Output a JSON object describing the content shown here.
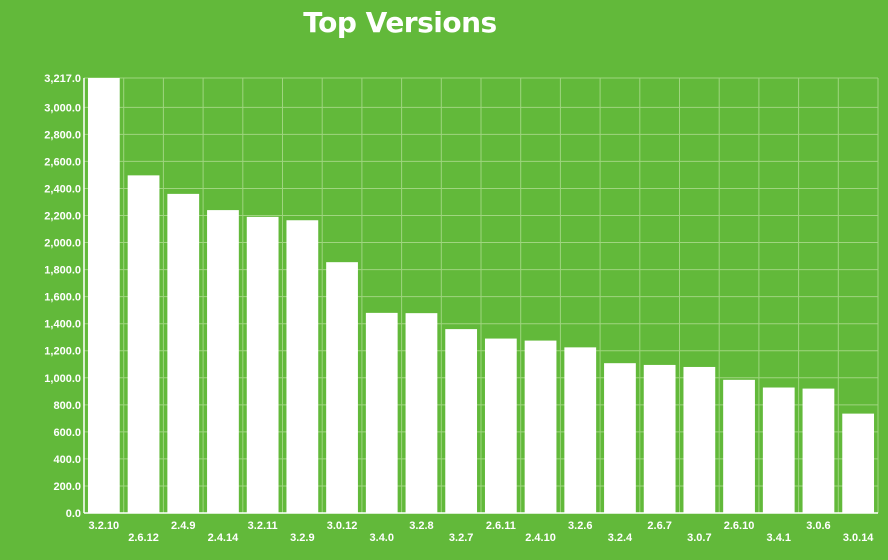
{
  "chart_data": {
    "type": "bar",
    "title": "Top Versions",
    "xlabel": "",
    "ylabel": "",
    "ylim": [
      0,
      3217
    ],
    "y_ticks": [
      "0.0",
      "200.0",
      "400.0",
      "600.0",
      "800.0",
      "1,000.0",
      "1,200.0",
      "1,400.0",
      "1,600.0",
      "1,800.0",
      "2,000.0",
      "2,200.0",
      "2,400.0",
      "2,600.0",
      "2,800.0",
      "3,000.0",
      "3,217.0"
    ],
    "y_tick_values": [
      0,
      200,
      400,
      600,
      800,
      1000,
      1200,
      1400,
      1600,
      1800,
      2000,
      2200,
      2400,
      2600,
      2800,
      3000,
      3217
    ],
    "categories": [
      "3.2.10",
      "2.6.12",
      "2.4.9",
      "2.4.14",
      "3.2.11",
      "3.2.9",
      "3.0.12",
      "3.4.0",
      "3.2.8",
      "3.2.7",
      "2.6.11",
      "2.4.10",
      "3.2.6",
      "3.2.4",
      "2.6.7",
      "3.0.7",
      "2.6.10",
      "3.4.1",
      "3.0.6",
      "3.0.14"
    ],
    "values": [
      3217,
      2497,
      2360,
      2240,
      2190,
      2165,
      1855,
      1480,
      1478,
      1360,
      1290,
      1275,
      1225,
      1108,
      1095,
      1080,
      985,
      928,
      920,
      735
    ],
    "grid": true,
    "colors": {
      "background": "#62b93a",
      "bar": "#ffffff",
      "grid": "#9fd57f",
      "text": "#ffffff"
    }
  }
}
